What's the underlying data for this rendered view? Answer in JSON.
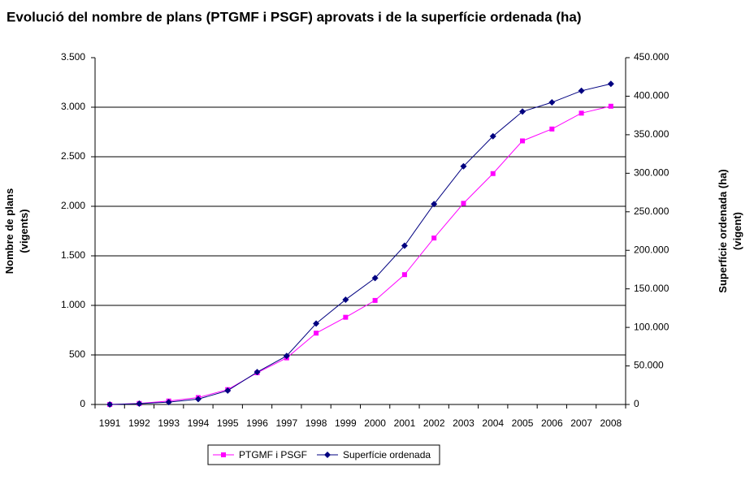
{
  "chart_data": {
    "type": "line",
    "title": "Evolució del nombre de plans (PTGMF i PSGF) aprovats i de la superfície ordenada  (ha)",
    "ylabel": [
      "Nombre de plans",
      "(vigents)"
    ],
    "y2label": [
      "Superfície ordenada (ha)",
      "(vigent)"
    ],
    "categories": [
      "1991",
      "1992",
      "1993",
      "1994",
      "1995",
      "1996",
      "1997",
      "1998",
      "1999",
      "2000",
      "2001",
      "2002",
      "2003",
      "2004",
      "2005",
      "2006",
      "2007",
      "2008"
    ],
    "series": [
      {
        "name": "PTGMF i PSGF",
        "color": "#ff00ff",
        "marker": "square",
        "values": [
          0,
          10,
          35,
          70,
          150,
          320,
          470,
          720,
          880,
          1050,
          1310,
          1680,
          2030,
          2330,
          2660,
          2780,
          2940,
          3010
        ]
      },
      {
        "name": "Superfície ordenada",
        "color": "#000080",
        "marker": "diamond",
        "axis": "y2",
        "values": [
          0,
          1000,
          3000,
          7000,
          18000,
          42000,
          63000,
          105000,
          136000,
          164000,
          206000,
          260000,
          309000,
          348000,
          380000,
          392000,
          407000,
          416000
        ]
      }
    ],
    "ylim": [
      0,
      3500
    ],
    "yticks": [
      0,
      500,
      {
        "value": 1000,
        "label": "1.000"
      },
      {
        "value": 1500,
        "label": "1.500"
      },
      {
        "value": 2000,
        "label": "2.000"
      },
      {
        "value": 2500,
        "label": "2.500"
      },
      {
        "value": 3000,
        "label": "3.000"
      },
      {
        "value": 3500,
        "label": "3.500"
      }
    ],
    "y2lim": [
      0,
      450000
    ],
    "y2ticks": [
      0,
      {
        "value": 50000,
        "label": "50.000"
      },
      {
        "value": 100000,
        "label": "100.000"
      },
      {
        "value": 150000,
        "label": "150.000"
      },
      {
        "value": 200000,
        "label": "200.000"
      },
      {
        "value": 250000,
        "label": "250.000"
      },
      {
        "value": 300000,
        "label": "300.000"
      },
      {
        "value": 350000,
        "label": "350.000"
      },
      {
        "value": 400000,
        "label": "400.000"
      },
      {
        "value": 450000,
        "label": "450.000"
      }
    ],
    "grid": true,
    "legend": "bottom"
  }
}
